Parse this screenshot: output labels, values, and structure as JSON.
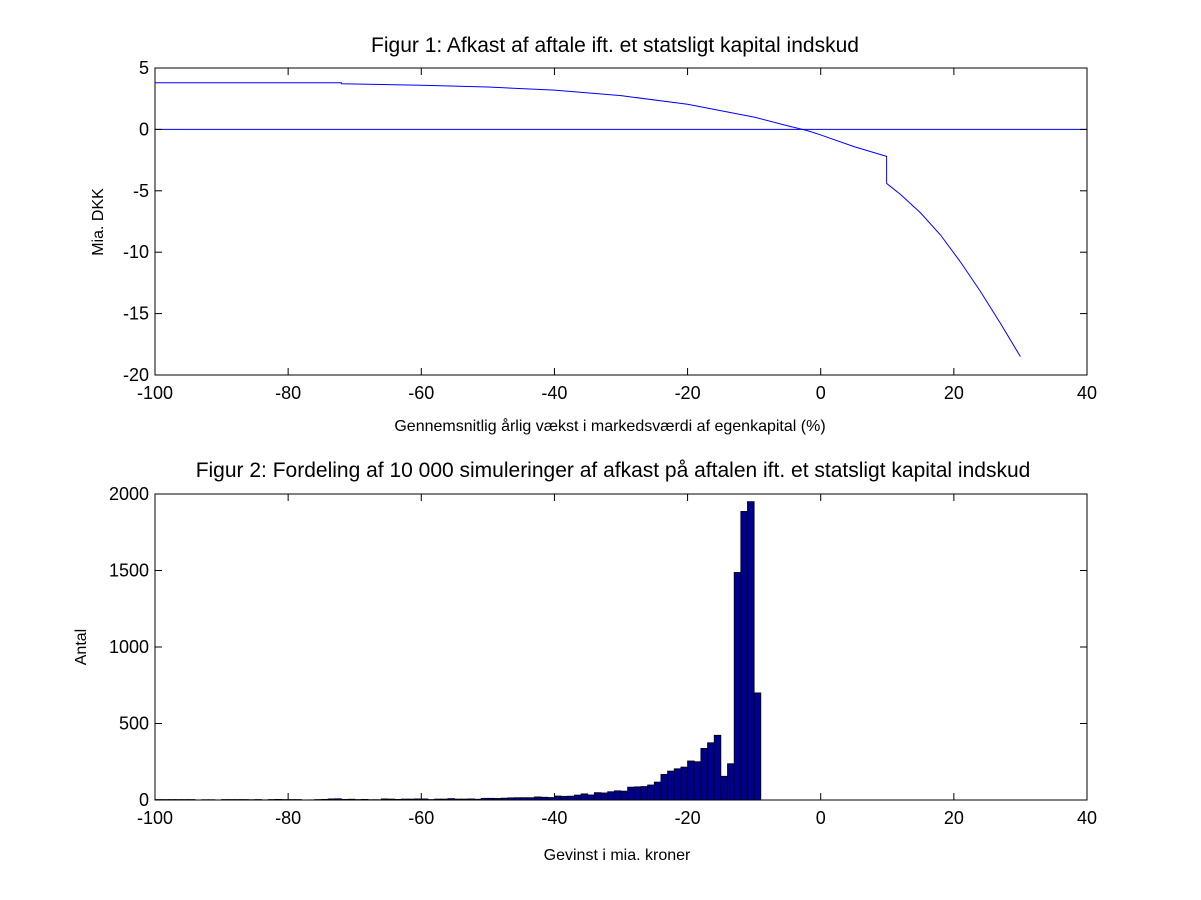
{
  "chart_data": [
    {
      "type": "line",
      "title": "Figur 1: Afkast af aftale ift. et statsligt kapital indskud",
      "xlabel": "Gennemsnitlig årlig vækst i markedsværdi af egenkapital (%)",
      "ylabel": "Mia. DKK",
      "xlim": [
        -100,
        40
      ],
      "ylim": [
        -20,
        5
      ],
      "xticks": [
        -100,
        -80,
        -60,
        -40,
        -20,
        0,
        20,
        40
      ],
      "yticks": [
        5,
        0,
        -5,
        -10,
        -15,
        -20
      ],
      "grid": false,
      "line_color": "#0000ff",
      "series": [
        {
          "x": [
            -100,
            -72,
            -72,
            -60,
            -50,
            -40,
            -30,
            -20,
            -10,
            -5,
            -2,
            0,
            5,
            9.9,
            9.9,
            12,
            15,
            18,
            21,
            24,
            27,
            30
          ],
          "values": [
            3.8,
            3.8,
            3.72,
            3.6,
            3.45,
            3.2,
            2.75,
            2.05,
            1.0,
            0.3,
            -0.1,
            -0.45,
            -1.4,
            -2.2,
            -4.4,
            -5.3,
            -6.8,
            -8.6,
            -10.8,
            -13.2,
            -15.8,
            -18.5
          ]
        },
        {
          "x": [
            -100,
            40
          ],
          "values": [
            0,
            0
          ]
        }
      ]
    },
    {
      "type": "bar",
      "title": "Figur 2: Fordeling af 10 000 simuleringer af afkast på aftalen ift. et statsligt kapital indskud",
      "xlabel": "Gevinst i mia. kroner",
      "ylabel": "Antal",
      "xlim": [
        -100,
        40
      ],
      "ylim": [
        0,
        2000
      ],
      "xticks": [
        -100,
        -80,
        -60,
        -40,
        -20,
        0,
        20,
        40
      ],
      "yticks": [
        2000,
        1500,
        1000,
        500,
        0
      ],
      "grid": false,
      "bar_fill": "#00008f",
      "bar_edge": "#000000",
      "bin_start": -100,
      "bin_width": 1,
      "values": [
        3,
        3,
        3,
        3,
        3,
        3,
        0,
        2,
        2,
        0,
        3,
        3,
        3,
        3,
        2,
        3,
        1,
        3,
        4,
        3,
        3,
        3,
        0,
        1,
        3,
        4,
        7,
        8,
        4,
        5,
        3,
        4,
        2,
        2,
        7,
        6,
        4,
        6,
        6,
        7,
        7,
        3,
        6,
        6,
        9,
        6,
        6,
        7,
        5,
        11,
        11,
        10,
        12,
        14,
        15,
        15,
        15,
        20,
        18,
        16,
        26,
        24,
        25,
        32,
        40,
        33,
        48,
        46,
        54,
        60,
        58,
        84,
        86,
        88,
        98,
        117,
        167,
        189,
        204,
        215,
        255,
        250,
        337,
        374,
        423,
        155,
        237,
        1487,
        1886,
        1950,
        700
      ]
    }
  ]
}
